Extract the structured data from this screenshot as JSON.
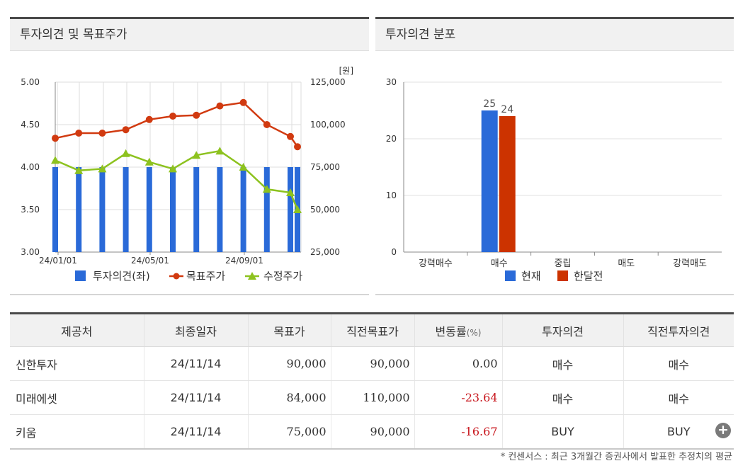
{
  "left_panel": {
    "title": "투자의견 및 목표주가"
  },
  "right_panel": {
    "title": "투자의견 분포"
  },
  "chart_data": [
    {
      "type": "bar+line",
      "title": "투자의견 및 목표주가",
      "unit_label": "[원]",
      "x_ticks": [
        "24/01/01",
        "24/05/01",
        "24/09/01"
      ],
      "y_left": {
        "range": [
          3.0,
          5.0
        ],
        "ticks": [
          "5.00",
          "4.50",
          "4.00",
          "3.50",
          "3.00"
        ]
      },
      "y_right": {
        "range": [
          25000,
          125000
        ],
        "ticks": [
          "125,000",
          "100,000",
          "75,000",
          "50,000",
          "25,000"
        ]
      },
      "grid": true,
      "legend_placement": "bottom",
      "series": [
        {
          "name": "투자의견(좌)",
          "kind": "bar",
          "axis": "left",
          "color": "#2a6ad8",
          "values": [
            4.0,
            4.0,
            4.0,
            4.0,
            4.0,
            4.0,
            4.0,
            4.0,
            4.0,
            4.0,
            4.0,
            4.0
          ]
        },
        {
          "name": "목표주가",
          "kind": "line",
          "axis": "right",
          "color": "#d13a10",
          "marker": "circle",
          "values": [
            92000,
            95000,
            95000,
            97000,
            103000,
            105000,
            105500,
            111000,
            113000,
            100000,
            93000,
            87000
          ]
        },
        {
          "name": "수정주가",
          "kind": "line",
          "axis": "right",
          "color": "#8dc21f",
          "marker": "triangle",
          "values": [
            79000,
            73000,
            74000,
            83000,
            78000,
            74000,
            82000,
            84500,
            75000,
            62000,
            60000,
            50000
          ]
        }
      ]
    },
    {
      "type": "bar",
      "title": "투자의견 분포",
      "categories": [
        "강력매수",
        "매수",
        "중립",
        "매도",
        "강력매도"
      ],
      "ylim": [
        0,
        30
      ],
      "y_ticks": [
        "30",
        "20",
        "10",
        "0"
      ],
      "grid": true,
      "legend_placement": "bottom",
      "series": [
        {
          "name": "현재",
          "color": "#2a6ad8",
          "values": [
            0,
            25,
            0,
            0,
            0
          ]
        },
        {
          "name": "한달전",
          "color": "#cc3300",
          "values": [
            0,
            24,
            0,
            0,
            0
          ]
        }
      ]
    }
  ],
  "table": {
    "headers": [
      "제공처",
      "최종일자",
      "목표가",
      "직전목표가",
      "변동률",
      "(%)",
      "투자의견",
      "직전투자의견"
    ],
    "rows": [
      {
        "provider": "신한투자",
        "date": "24/11/14",
        "target": "90,000",
        "prev_target": "90,000",
        "change": "0.00",
        "opinion": "매수",
        "prev_opinion": "매수"
      },
      {
        "provider": "미래에셋",
        "date": "24/11/14",
        "target": "84,000",
        "prev_target": "110,000",
        "change": "-23.64",
        "opinion": "매수",
        "prev_opinion": "매수"
      },
      {
        "provider": "키움",
        "date": "24/11/14",
        "target": "75,000",
        "prev_target": "90,000",
        "change": "-16.67",
        "opinion": "BUY",
        "prev_opinion": "BUY"
      }
    ]
  },
  "more_button": {
    "icon": "plus-icon",
    "glyph": "+"
  },
  "footnote": "* 컨센서스 : 최근 3개월간 증권사에서 발표한 추정치의 평균"
}
